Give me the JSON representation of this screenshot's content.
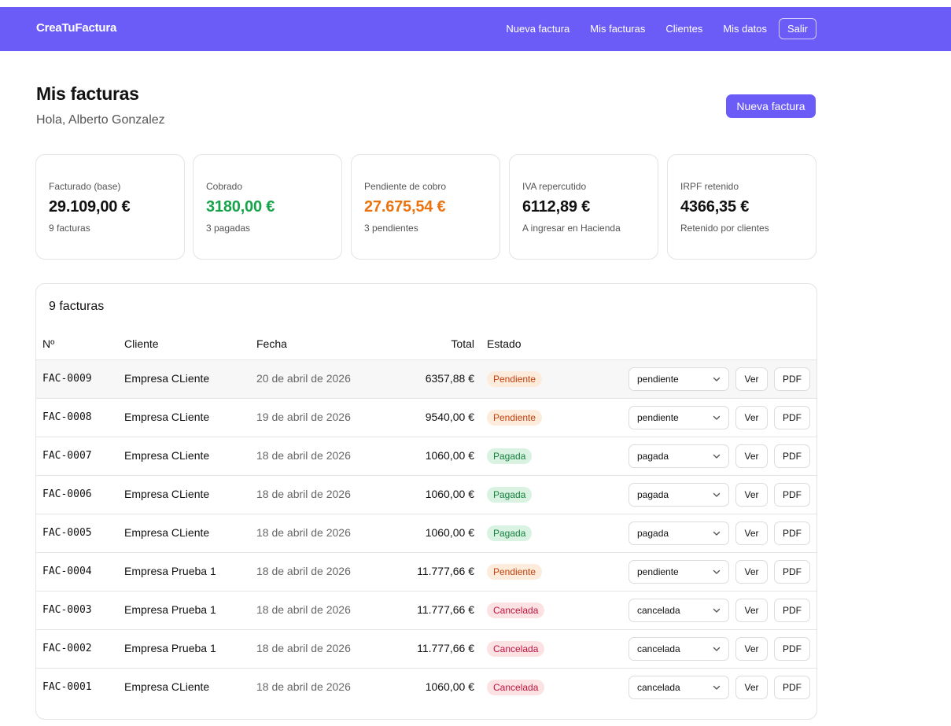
{
  "navbar": {
    "brand": "CreaTuFactura",
    "links": [
      "Nueva factura",
      "Mis facturas",
      "Clientes",
      "Mis datos"
    ],
    "logout": "Salir",
    "color": "#6c5cf7"
  },
  "header": {
    "title": "Mis facturas",
    "greeting": "Hola, Alberto Gonzalez",
    "new_button": "Nueva factura"
  },
  "stats": [
    {
      "label": "Facturado (base)",
      "value": "29.109,00 €",
      "sub": "9 facturas",
      "color": "#111111"
    },
    {
      "label": "Cobrado",
      "value": "3180,00 €",
      "sub": "3 pagadas",
      "color": "#16a34a"
    },
    {
      "label": "Pendiente de cobro",
      "value": "27.675,54 €",
      "sub": "3 pendientes",
      "color": "#ea730f"
    },
    {
      "label": "IVA repercutido",
      "value": "6112,89 €",
      "sub": "A ingresar en Hacienda",
      "color": "#111111"
    },
    {
      "label": "IRPF retenido",
      "value": "4366,35 €",
      "sub": "Retenido por clientes",
      "color": "#111111"
    }
  ],
  "table": {
    "count": "9 facturas",
    "headers": {
      "num": "Nº",
      "client": "Cliente",
      "date": "Fecha",
      "total": "Total",
      "status": "Estado"
    },
    "rows": [
      {
        "num": "FAC-0009",
        "client": "Empresa CLiente",
        "date": "20 de abril de 2026",
        "total": "6357,88 €",
        "status": "Pendiente",
        "select": "pendiente",
        "ver": "Ver",
        "pdf": "PDF"
      },
      {
        "num": "FAC-0008",
        "client": "Empresa CLiente",
        "date": "19 de abril de 2026",
        "total": "9540,00 €",
        "status": "Pendiente",
        "select": "pendiente",
        "ver": "Ver",
        "pdf": "PDF"
      },
      {
        "num": "FAC-0007",
        "client": "Empresa CLiente",
        "date": "18 de abril de 2026",
        "total": "1060,00 €",
        "status": "Pagada",
        "select": "pagada",
        "ver": "Ver",
        "pdf": "PDF"
      },
      {
        "num": "FAC-0006",
        "client": "Empresa CLiente",
        "date": "18 de abril de 2026",
        "total": "1060,00 €",
        "status": "Pagada",
        "select": "pagada",
        "ver": "Ver",
        "pdf": "PDF"
      },
      {
        "num": "FAC-0005",
        "client": "Empresa CLiente",
        "date": "18 de abril de 2026",
        "total": "1060,00 €",
        "status": "Pagada",
        "select": "pagada",
        "ver": "Ver",
        "pdf": "PDF"
      },
      {
        "num": "FAC-0004",
        "client": "Empresa Prueba 1",
        "date": "18 de abril de 2026",
        "total": "11.777,66 €",
        "status": "Pendiente",
        "select": "pendiente",
        "ver": "Ver",
        "pdf": "PDF"
      },
      {
        "num": "FAC-0003",
        "client": "Empresa Prueba 1",
        "date": "18 de abril de 2026",
        "total": "11.777,66 €",
        "status": "Cancelada",
        "select": "cancelada",
        "ver": "Ver",
        "pdf": "PDF"
      },
      {
        "num": "FAC-0002",
        "client": "Empresa Prueba 1",
        "date": "18 de abril de 2026",
        "total": "11.777,66 €",
        "status": "Cancelada",
        "select": "cancelada",
        "ver": "Ver",
        "pdf": "PDF"
      },
      {
        "num": "FAC-0001",
        "client": "Empresa CLiente",
        "date": "18 de abril de 2026",
        "total": "1060,00 €",
        "status": "Cancelada",
        "select": "cancelada",
        "ver": "Ver",
        "pdf": "PDF"
      }
    ]
  }
}
